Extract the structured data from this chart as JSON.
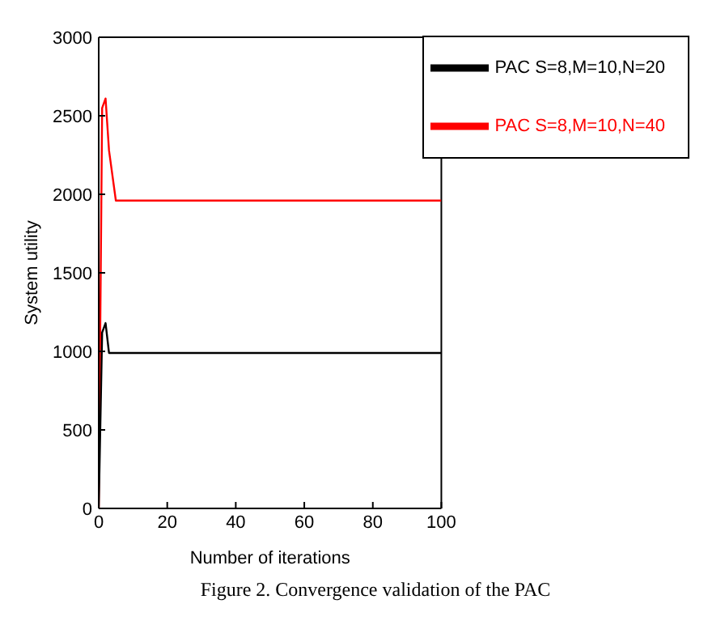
{
  "chart_data": {
    "type": "line",
    "xlabel": "Number of iterations",
    "ylabel": "System utility",
    "annotations": [
      "Figure 2. Convergence validation of the PAC"
    ],
    "xlim": [
      0,
      100
    ],
    "xticks": [
      0,
      20,
      40,
      60,
      80,
      100
    ],
    "ylim": [
      0,
      3000
    ],
    "yticks": [
      0,
      500,
      1000,
      1500,
      2000,
      2500,
      3000
    ],
    "grid": false,
    "legend": "top right",
    "marker": "none",
    "line_style": "solid",
    "series": [
      {
        "name": "PAC S=8,M=10,N=40",
        "color": "#ff0000",
        "x": [
          0,
          1,
          2,
          3,
          5,
          100
        ],
        "values": [
          0,
          2550,
          2610,
          2280,
          1960,
          1960
        ]
      },
      {
        "name": "PAC S=8,M=10,N=20",
        "color": "#000000",
        "x": [
          0,
          1,
          2,
          3,
          100
        ],
        "values": [
          0,
          1120,
          1180,
          990,
          990
        ]
      }
    ]
  }
}
